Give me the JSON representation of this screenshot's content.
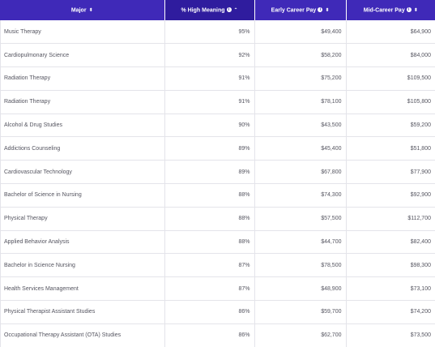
{
  "table": {
    "headers": {
      "major": "Major",
      "high_meaning": "% High Meaning",
      "early_pay": "Early Career Pay",
      "mid_pay": "Mid-Career Pay"
    },
    "rows": [
      {
        "major": "Music Therapy",
        "meaning": "95%",
        "early": "$49,400",
        "mid": "$64,900"
      },
      {
        "major": "Cardiopulmonary Science",
        "meaning": "92%",
        "early": "$58,200",
        "mid": "$84,000"
      },
      {
        "major": "Radiation Therapy",
        "meaning": "91%",
        "early": "$75,200",
        "mid": "$109,500"
      },
      {
        "major": "Radiation Therapy",
        "meaning": "91%",
        "early": "$78,100",
        "mid": "$105,800"
      },
      {
        "major": "Alcohol & Drug Studies",
        "meaning": "90%",
        "early": "$43,500",
        "mid": "$59,200"
      },
      {
        "major": "Addictions Counseling",
        "meaning": "89%",
        "early": "$45,400",
        "mid": "$51,800"
      },
      {
        "major": "Cardiovascular Technology",
        "meaning": "89%",
        "early": "$67,800",
        "mid": "$77,900"
      },
      {
        "major": "Bachelor of Science in Nursing",
        "meaning": "88%",
        "early": "$74,300",
        "mid": "$92,900"
      },
      {
        "major": "Physical Therapy",
        "meaning": "88%",
        "early": "$57,500",
        "mid": "$112,700"
      },
      {
        "major": "Applied Behavior Analysis",
        "meaning": "88%",
        "early": "$44,700",
        "mid": "$82,400"
      },
      {
        "major": "Bachelor in Science Nursing",
        "meaning": "87%",
        "early": "$78,500",
        "mid": "$98,300"
      },
      {
        "major": "Health Services Management",
        "meaning": "87%",
        "early": "$48,900",
        "mid": "$73,100"
      },
      {
        "major": "Physical Therapist Assistant Studies",
        "meaning": "86%",
        "early": "$59,700",
        "mid": "$74,200"
      },
      {
        "major": "Occupational Therapy Assistant (OTA) Studies",
        "meaning": "86%",
        "early": "$62,700",
        "mid": "$73,500"
      }
    ]
  },
  "colors": {
    "header_bg": "#3f29b8",
    "header_sorted_bg": "#2f1c9e",
    "header_text": "#ffffff",
    "cell_text": "#555560",
    "border": "#e4e4ea"
  },
  "icons": {
    "sort_both": "sort-both-icon",
    "sort_asc": "sort-ascending-icon",
    "info": "info-icon"
  }
}
